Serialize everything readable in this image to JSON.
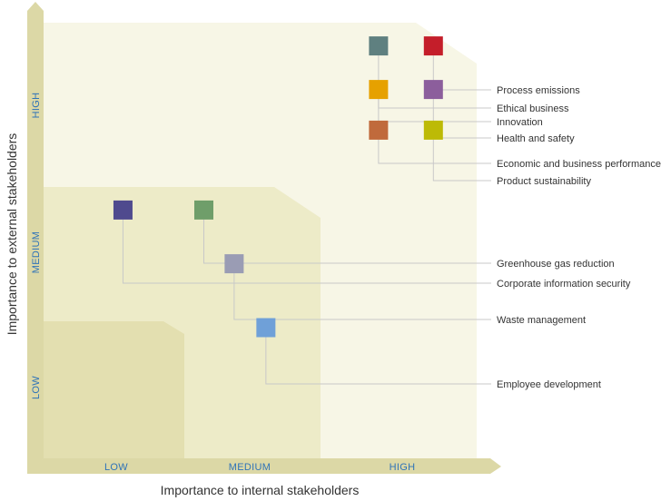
{
  "chart_data": {
    "type": "scatter",
    "title": "",
    "xlabel": "Importance to internal stakeholders",
    "ylabel": "Importance to external stakeholders",
    "x_ticks": [
      "LOW",
      "MEDIUM",
      "HIGH"
    ],
    "y_ticks": [
      "LOW",
      "MEDIUM",
      "HIGH"
    ],
    "xlim": [
      0,
      3
    ],
    "ylim": [
      0,
      3
    ],
    "grid": false,
    "legend": "right",
    "points": [
      {
        "label": "Process emissions",
        "x": 2.7,
        "y": 2.84,
        "color": "#c41e2a"
      },
      {
        "label": "Ethical business",
        "x": 2.32,
        "y": 2.84,
        "color": "#5f8080"
      },
      {
        "label": "Innovation",
        "x": 2.32,
        "y": 2.54,
        "color": "#e6a100"
      },
      {
        "label": "Health and safety",
        "x": 2.7,
        "y": 2.54,
        "color": "#8c5e9c"
      },
      {
        "label": "Economic and business performance",
        "x": 2.32,
        "y": 2.26,
        "color": "#c06a3c"
      },
      {
        "label": "Product sustainability",
        "x": 2.7,
        "y": 2.26,
        "color": "#bdba06"
      },
      {
        "label": "Greenhouse gas reduction",
        "x": 1.11,
        "y": 1.71,
        "color": "#6f9e6a"
      },
      {
        "label": "Corporate information security",
        "x": 0.55,
        "y": 1.71,
        "color": "#4f4a8e"
      },
      {
        "label": "Waste management",
        "x": 1.32,
        "y": 1.34,
        "color": "#9a9cb4"
      },
      {
        "label": "Employee development",
        "x": 1.54,
        "y": 0.9,
        "color": "#6fa0d8"
      }
    ]
  },
  "colors": {
    "zone_low": "#e3dfb0",
    "zone_medium": "#edebc8",
    "zone_high": "#f7f6e6",
    "axis": "#dcd8a6",
    "leader": "#c8c8c8"
  }
}
